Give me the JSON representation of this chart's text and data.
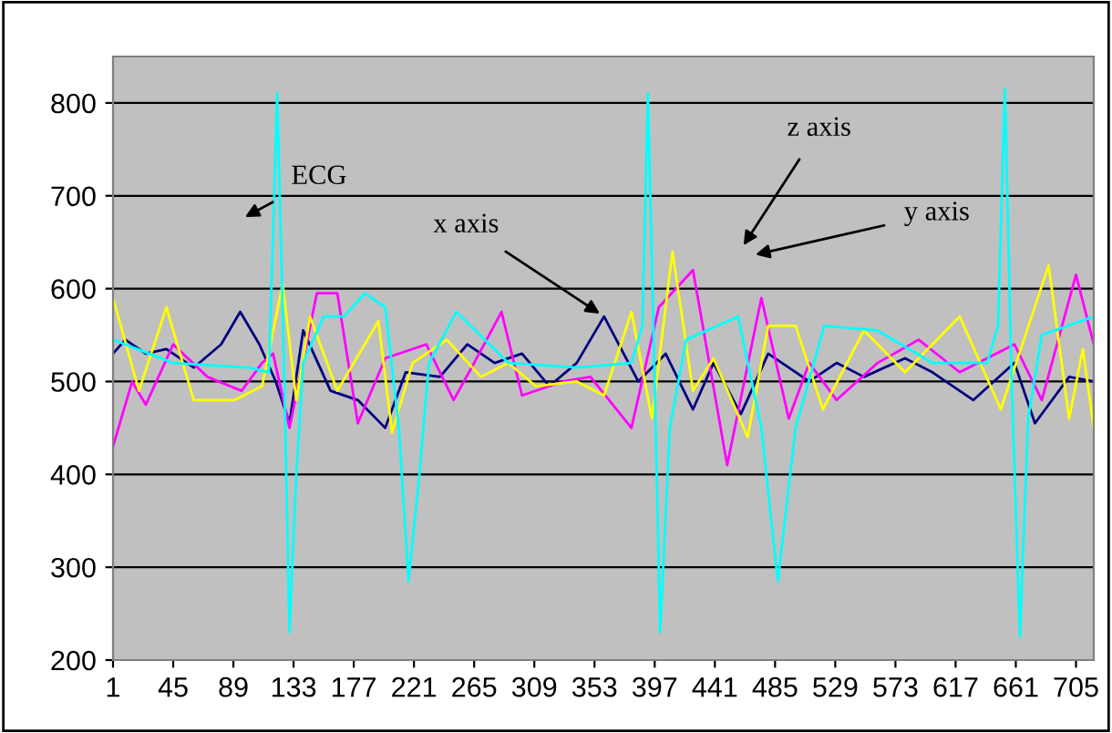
{
  "chart_data": {
    "type": "line",
    "xlim": [
      1,
      718
    ],
    "xticks": [
      1,
      45,
      89,
      133,
      177,
      221,
      265,
      309,
      353,
      397,
      441,
      485,
      529,
      573,
      617,
      661,
      705
    ],
    "ylim": [
      200,
      850
    ],
    "yticks": [
      200,
      300,
      400,
      500,
      600,
      700,
      800
    ],
    "grid": "y",
    "legend": false,
    "marker": "none",
    "line_style": "solid",
    "series": [
      {
        "color": "#000080",
        "x": [
          1,
          10,
          25,
          40,
          60,
          80,
          94,
          108,
          120,
          130,
          140,
          160,
          180,
          200,
          215,
          240,
          260,
          280,
          300,
          320,
          340,
          360,
          385,
          405,
          425,
          440,
          460,
          480,
          510,
          530,
          550,
          580,
          600,
          630,
          660,
          675,
          700,
          718
        ],
        "values": [
          530,
          545,
          530,
          535,
          515,
          540,
          575,
          540,
          500,
          455,
          555,
          490,
          480,
          450,
          510,
          505,
          540,
          520,
          530,
          495,
          520,
          570,
          500,
          530,
          470,
          520,
          465,
          530,
          500,
          520,
          505,
          525,
          510,
          480,
          520,
          455,
          505,
          500
        ]
      },
      {
        "color": "#ff00ff",
        "x": [
          1,
          15,
          25,
          45,
          70,
          95,
          110,
          118,
          130,
          150,
          165,
          180,
          200,
          230,
          250,
          265,
          285,
          300,
          330,
          350,
          380,
          400,
          425,
          450,
          475,
          495,
          510,
          530,
          560,
          590,
          620,
          660,
          680,
          705,
          718
        ],
        "values": [
          430,
          500,
          475,
          540,
          505,
          490,
          520,
          530,
          450,
          595,
          595,
          455,
          525,
          540,
          480,
          520,
          575,
          485,
          500,
          505,
          450,
          580,
          620,
          410,
          590,
          460,
          520,
          480,
          520,
          545,
          510,
          540,
          480,
          615,
          540
        ]
      },
      {
        "color": "#ffff00",
        "x": [
          1,
          20,
          40,
          60,
          90,
          110,
          125,
          135,
          145,
          165,
          195,
          205,
          220,
          245,
          270,
          290,
          310,
          340,
          360,
          380,
          395,
          410,
          425,
          440,
          465,
          480,
          500,
          520,
          550,
          580,
          620,
          650,
          685,
          700,
          710,
          718
        ],
        "values": [
          590,
          490,
          580,
          480,
          480,
          495,
          605,
          480,
          570,
          490,
          565,
          445,
          520,
          545,
          505,
          520,
          495,
          500,
          485,
          575,
          460,
          640,
          490,
          525,
          440,
          560,
          560,
          470,
          555,
          510,
          570,
          470,
          625,
          460,
          535,
          450
        ]
      },
      {
        "color": "#00ffff",
        "x": [
          1,
          45,
          100,
          115,
          121,
          126,
          130,
          135,
          140,
          155,
          170,
          185,
          200,
          210,
          217,
          225,
          232,
          252,
          290,
          340,
          380,
          388,
          392,
          397,
          401,
          408,
          420,
          458,
          475,
          487,
          500,
          521,
          560,
          600,
          640,
          648,
          653,
          658,
          664,
          670,
          680,
          718
        ],
        "values": [
          545,
          520,
          515,
          510,
          810,
          520,
          230,
          400,
          520,
          570,
          570,
          595,
          580,
          450,
          285,
          400,
          520,
          575,
          520,
          515,
          520,
          560,
          810,
          500,
          230,
          450,
          545,
          570,
          450,
          285,
          450,
          560,
          555,
          520,
          520,
          560,
          815,
          500,
          225,
          460,
          550,
          570
        ]
      }
    ],
    "annotations": [
      "ECG",
      {
        "text": "x axis",
        "x": 360,
        "y": 570
      },
      "z axis",
      "y axis"
    ]
  }
}
